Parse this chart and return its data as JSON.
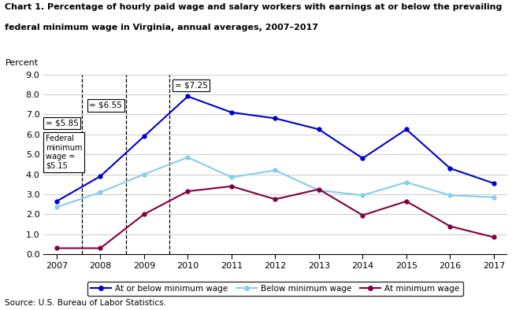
{
  "title_line1": "Chart 1. Percentage of hourly paid wage and salary workers with earnings at or below the prevailing",
  "title_line2": "federal minimum wage in Virginia, annual averages, 2007–2017",
  "ylabel": "Percent",
  "source": "Source: U.S. Bureau of Labor Statistics.",
  "years": [
    2007,
    2008,
    2009,
    2010,
    2011,
    2012,
    2013,
    2014,
    2015,
    2016,
    2017
  ],
  "at_or_below": [
    2.65,
    3.9,
    5.9,
    7.9,
    7.1,
    6.8,
    6.25,
    4.8,
    6.25,
    4.3,
    3.55
  ],
  "below": [
    2.35,
    3.1,
    4.0,
    4.85,
    3.85,
    4.2,
    3.2,
    2.95,
    3.6,
    2.95,
    2.85
  ],
  "at_min": [
    0.3,
    0.3,
    2.0,
    3.15,
    3.4,
    2.75,
    3.25,
    1.95,
    2.65,
    1.4,
    0.85
  ],
  "color_at_or_below": "#0000CC",
  "color_below": "#87CEEB",
  "color_at_min": "#800040",
  "ylim": [
    0.0,
    9.0
  ],
  "yticks": [
    0.0,
    1.0,
    2.0,
    3.0,
    4.0,
    5.0,
    6.0,
    7.0,
    8.0,
    9.0
  ],
  "background_color": "#ffffff",
  "grid_color": "#cccccc"
}
